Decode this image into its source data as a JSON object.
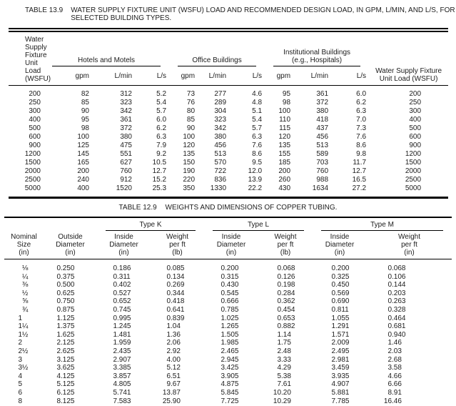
{
  "colors": {
    "text": "#1c1c1c",
    "rules": "#000000"
  },
  "table_13_9": {
    "caption": {
      "label": "TABLE 13.9",
      "line1": "WATER SUPPLY FIXTURE UNIT (WSFU) LOAD AND RECOMMENDED DESIGN LOAD, IN GPM, L/MIN, AND L/S, FOR",
      "line2": "SELECTED BUILDING TYPES."
    },
    "left_header": {
      "line1": "Water Supply Fixture",
      "line2": "Unit Load (WSFU)"
    },
    "right_header": {
      "line1": "Water Supply Fixture",
      "line2": "Unit Load (WSFU)"
    },
    "groups": [
      {
        "title": "Hotels and Motels",
        "cols": [
          "gpm",
          "L/min",
          "L/s"
        ]
      },
      {
        "title": "Office Buildings",
        "cols": [
          "gpm",
          "L/min",
          "L/s"
        ]
      },
      {
        "title": "Institutional Buildings",
        "title2": "(e.g., Hospitals)",
        "cols": [
          "gpm",
          "L/min",
          "L/s"
        ]
      }
    ],
    "rows": [
      [
        "200",
        "82",
        "312",
        "5.2",
        "73",
        "277",
        "4.6",
        "95",
        "361",
        "6.0",
        "200"
      ],
      [
        "250",
        "85",
        "323",
        "5.4",
        "76",
        "289",
        "4.8",
        "98",
        "372",
        "6.2",
        "250"
      ],
      [
        "300",
        "90",
        "342",
        "5.7",
        "80",
        "304",
        "5.1",
        "100",
        "380",
        "6.3",
        "300"
      ],
      [
        "400",
        "95",
        "361",
        "6.0",
        "85",
        "323",
        "5.4",
        "110",
        "418",
        "7.0",
        "400"
      ],
      [
        "500",
        "98",
        "372",
        "6.2",
        "90",
        "342",
        "5.7",
        "115",
        "437",
        "7.3",
        "500"
      ],
      [
        "600",
        "100",
        "380",
        "6.3",
        "100",
        "380",
        "6.3",
        "120",
        "456",
        "7.6",
        "600"
      ],
      [
        "900",
        "125",
        "475",
        "7.9",
        "120",
        "456",
        "7.6",
        "135",
        "513",
        "8.6",
        "900"
      ],
      [
        "1200",
        "145",
        "551",
        "9.2",
        "135",
        "513",
        "8.6",
        "155",
        "589",
        "9.8",
        "1200"
      ],
      [
        "1500",
        "165",
        "627",
        "10.5",
        "150",
        "570",
        "9.5",
        "185",
        "703",
        "11.7",
        "1500"
      ],
      [
        "2000",
        "200",
        "760",
        "12.7",
        "190",
        "722",
        "12.0",
        "200",
        "760",
        "12.7",
        "2000"
      ],
      [
        "2500",
        "240",
        "912",
        "15.2",
        "220",
        "836",
        "13.9",
        "260",
        "988",
        "16.5",
        "2500"
      ],
      [
        "5000",
        "400",
        "1520",
        "25.3",
        "350",
        "1330",
        "22.2",
        "430",
        "1634",
        "27.2",
        "5000"
      ]
    ]
  },
  "table_12_9": {
    "caption": {
      "label": "TABLE 12.9",
      "text": "WEIGHTS AND DIMENSIONS OF COPPER TUBING."
    },
    "col1_header": {
      "line1": "Nominal",
      "line2": "Size",
      "line3": "(in)"
    },
    "col2_header": {
      "line1": "Outside",
      "line2": "Diameter",
      "line3": "(in)"
    },
    "groups": [
      {
        "title": "Type K",
        "col_a": {
          "line1": "Inside",
          "line2": "Diameter",
          "line3": "(in)"
        },
        "col_b": {
          "line1": "Weight",
          "line2": "per ft",
          "line3": "(lb)"
        }
      },
      {
        "title": "Type L",
        "col_a": {
          "line1": "Inside",
          "line2": "Diameter",
          "line3": "(in)"
        },
        "col_b": {
          "line1": "Weight",
          "line2": "per ft",
          "line3": "(lb)"
        }
      },
      {
        "title": "Type M",
        "col_a": {
          "line1": "Inside",
          "line2": "Diameter",
          "line3": "(in)"
        },
        "col_b": {
          "line1": "Weight",
          "line2": "per ft",
          "line3": "(in)"
        }
      }
    ],
    "rows": [
      [
        "⅛",
        "0.250",
        "0.186",
        "0.085",
        "0.200",
        "0.068",
        "0.200",
        "0.068"
      ],
      [
        "¼",
        "0.375",
        "0.311",
        "0.134",
        "0.315",
        "0.126",
        "0.325",
        "0.106"
      ],
      [
        "⅜",
        "0.500",
        "0.402",
        "0.269",
        "0.430",
        "0.198",
        "0.450",
        "0.144"
      ],
      [
        "½",
        "0.625",
        "0.527",
        "0.344",
        "0.545",
        "0.284",
        "0.569",
        "0.203"
      ],
      [
        "⅝",
        "0.750",
        "0.652",
        "0.418",
        "0.666",
        "0.362",
        "0.690",
        "0.263"
      ],
      [
        "¾",
        "0.875",
        "0.745",
        "0.641",
        "0.785",
        "0.454",
        "0.811",
        "0.328"
      ],
      [
        "1",
        "1.125",
        "0.995",
        "0.839",
        "1.025",
        "0.653",
        "1.055",
        "0.464"
      ],
      [
        "1¼",
        "1.375",
        "1.245",
        "1.04",
        "1.265",
        "0.882",
        "1.291",
        "0.681"
      ],
      [
        "1½",
        "1.625",
        "1.481",
        "1.36",
        "1.505",
        "1.14",
        "1.571",
        "0.940"
      ],
      [
        "2",
        "2.125",
        "1.959",
        "2.06",
        "1.985",
        "1.75",
        "2.009",
        "1.46"
      ],
      [
        "2½",
        "2.625",
        "2.435",
        "2.92",
        "2.465",
        "2.48",
        "2.495",
        "2.03"
      ],
      [
        "3",
        "3.125",
        "2.907",
        "4.00",
        "2.945",
        "3.33",
        "2.981",
        "2.68"
      ],
      [
        "3½",
        "3.625",
        "3.385",
        "5.12",
        "3.425",
        "4.29",
        "3.459",
        "3.58"
      ],
      [
        "4",
        "4.125",
        "3.857",
        "6.51",
        "3.905",
        "5.38",
        "3.935",
        "4.66"
      ],
      [
        "5",
        "5.125",
        "4.805",
        "9.67",
        "4.875",
        "7.61",
        "4.907",
        "6.66"
      ],
      [
        "6",
        "6.125",
        "5.741",
        "13.87",
        "5.845",
        "10.20",
        "5.881",
        "8.91"
      ],
      [
        "8",
        "8.125",
        "7.583",
        "25.90",
        "7.725",
        "10.29",
        "7.785",
        "16.46"
      ]
    ]
  }
}
